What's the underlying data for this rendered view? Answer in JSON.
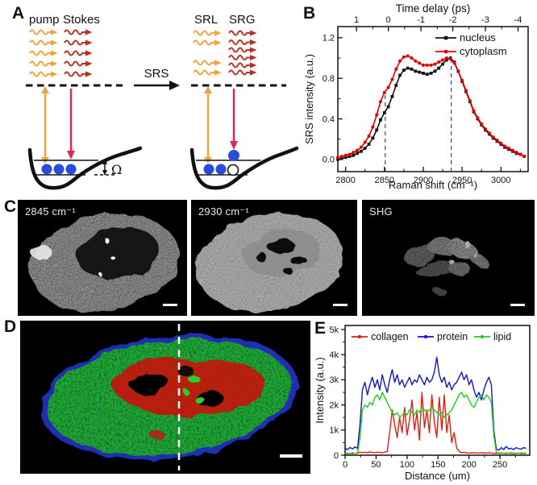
{
  "panel_labels": {
    "a": "A",
    "b": "B",
    "c": "C",
    "d": "D",
    "e": "E"
  },
  "panel_a": {
    "pump_label": "pump",
    "stokes_label": "Stokes",
    "srl_label": "SRL",
    "srg_label": "SRG",
    "srs_label": "SRS",
    "omega_label": "Ω",
    "colors": {
      "pump": "#EDA33E",
      "stokes": "#B7312C",
      "stokes_arrow": "#E5274E",
      "electron_blue": "#2B4BDB"
    }
  },
  "panel_c": {
    "image_labels": [
      "2845 cm⁻¹",
      "2930 cm⁻¹",
      "SHG"
    ]
  },
  "panel_d": {
    "colors": {
      "lipid_green": "#15AE1E",
      "protein_blue": "#2334C4",
      "collagen_red": "#C2170A"
    }
  },
  "chart_data": [
    {
      "id": "srs-spectrum",
      "type": "line",
      "top_axis_label": "Time delay (ps)",
      "xlabel": "Raman shift (cm⁻¹)",
      "ylabel": "SRS intensity (a.u.)",
      "xlim": [
        2790,
        3035
      ],
      "ylim": [
        -0.12,
        1.31
      ],
      "x_start": 2790,
      "x_step": 5,
      "x_ticks": [
        {
          "v": 2800,
          "label": "2800"
        },
        {
          "v": 2850,
          "label": "2850"
        },
        {
          "v": 2900,
          "label": "2900"
        },
        {
          "v": 2950,
          "label": "2950"
        },
        {
          "v": 3000,
          "label": "3000"
        }
      ],
      "x_minor": [
        2825,
        2875,
        2925,
        2975,
        3025
      ],
      "y_ticks": [
        {
          "v": 0.0,
          "label": "0.0"
        },
        {
          "v": 0.4,
          "label": "0.4"
        },
        {
          "v": 0.8,
          "label": "0.8"
        },
        {
          "v": 1.2,
          "label": "1.2"
        }
      ],
      "y_minor": [
        0.2,
        0.6,
        1.0
      ],
      "top_ticks": [
        {
          "v": 2814,
          "label": "1"
        },
        {
          "v": 2855,
          "label": "0"
        },
        {
          "v": 2897,
          "label": "-1"
        },
        {
          "v": 2938,
          "label": "-2"
        },
        {
          "v": 2980,
          "label": "-3"
        },
        {
          "v": 3022,
          "label": "-4"
        }
      ],
      "top_minor": [
        2835,
        2876,
        2918,
        2959,
        3001
      ],
      "dashed_vlines": [
        {
          "x": 2851,
          "y_top": 0.67
        },
        {
          "x": 2936,
          "y_top": 1.0
        }
      ],
      "series": [
        {
          "name": "nucleus",
          "color": "#141414",
          "marker": "square",
          "values": [
            0.0,
            0.01,
            0.02,
            0.03,
            0.04,
            0.06,
            0.08,
            0.11,
            0.15,
            0.21,
            0.29,
            0.39,
            0.46,
            0.52,
            0.62,
            0.73,
            0.83,
            0.88,
            0.9,
            0.89,
            0.87,
            0.86,
            0.85,
            0.84,
            0.85,
            0.87,
            0.9,
            0.94,
            0.98,
            1.0,
            0.96,
            0.87,
            0.77,
            0.67,
            0.57,
            0.47,
            0.4,
            0.34,
            0.29,
            0.25,
            0.21,
            0.18,
            0.15,
            0.12,
            0.1,
            0.08,
            0.06,
            0.05,
            0.03
          ]
        },
        {
          "name": "cytoplasm",
          "color": "#E00000",
          "marker": "circle",
          "values": [
            0.02,
            0.03,
            0.04,
            0.05,
            0.07,
            0.09,
            0.12,
            0.17,
            0.23,
            0.32,
            0.44,
            0.57,
            0.66,
            0.71,
            0.79,
            0.89,
            0.97,
            1.01,
            1.02,
            1.0,
            0.97,
            0.95,
            0.93,
            0.93,
            0.93,
            0.94,
            0.96,
            0.98,
            1.0,
            0.99,
            0.95,
            0.87,
            0.78,
            0.68,
            0.58,
            0.48,
            0.41,
            0.35,
            0.3,
            0.26,
            0.22,
            0.19,
            0.16,
            0.13,
            0.11,
            0.09,
            0.07,
            0.05,
            0.03
          ]
        }
      ],
      "legend_position": "top-right"
    },
    {
      "id": "line-profile",
      "type": "line",
      "xlabel": "Distance (um)",
      "ylabel": "Intensity (a.u.)",
      "y_unit": "k",
      "xlim": [
        0,
        298
      ],
      "ylim": [
        0,
        5.16
      ],
      "x_start": 0,
      "x_step": 4,
      "x_ticks": [
        {
          "v": 0,
          "label": "0"
        },
        {
          "v": 50,
          "label": "50"
        },
        {
          "v": 100,
          "label": "100"
        },
        {
          "v": 150,
          "label": "150"
        },
        {
          "v": 200,
          "label": "200"
        },
        {
          "v": 250,
          "label": "250"
        }
      ],
      "x_minor": [
        25,
        75,
        125,
        175,
        225,
        275
      ],
      "y_ticks": [
        {
          "v": 0,
          "label": "0"
        },
        {
          "v": 1,
          "label": "1k"
        },
        {
          "v": 2,
          "label": "2k"
        },
        {
          "v": 3,
          "label": "3k"
        },
        {
          "v": 4,
          "label": "4k"
        },
        {
          "v": 5,
          "label": "5k"
        }
      ],
      "y_minor": [
        0.5,
        1.5,
        2.5,
        3.5,
        4.5
      ],
      "series": [
        {
          "name": "collagen",
          "color": "#DD2010",
          "marker": "dot",
          "values": [
            0.05,
            0.08,
            0.06,
            0.09,
            0.07,
            0.08,
            0.12,
            0.1,
            0.12,
            0.1,
            0.13,
            0.11,
            0.1,
            0.12,
            0.11,
            0.1,
            0.12,
            0.15,
            0.9,
            1.8,
            1.2,
            0.7,
            1.5,
            0.9,
            1.9,
            0.8,
            1.4,
            2.2,
            1.0,
            1.7,
            0.6,
            2.5,
            1.1,
            1.8,
            0.9,
            2.4,
            1.3,
            0.7,
            2.3,
            1.0,
            2.4,
            0.9,
            1.6,
            0.5,
            0.9,
            0.3,
            0.15,
            0.1,
            0.12,
            0.1,
            0.08,
            0.1,
            0.09,
            0.1,
            0.08,
            0.1,
            0.09,
            0.08,
            0.1,
            0.09,
            0.07,
            0.08,
            0.06,
            0.08,
            0.07,
            0.06,
            0.08,
            0.07,
            0.06,
            0.07,
            0.08,
            0.06,
            0.07,
            0.06
          ]
        },
        {
          "name": "protein",
          "color": "#1515CC",
          "marker": "dot",
          "values": [
            0.28,
            0.22,
            0.31,
            0.25,
            0.33,
            0.27,
            1.2,
            2.6,
            2.9,
            2.4,
            2.8,
            3.1,
            2.7,
            3.0,
            2.6,
            3.2,
            2.8,
            2.5,
            3.0,
            3.4,
            2.9,
            3.2,
            2.8,
            3.0,
            2.7,
            2.9,
            3.1,
            2.8,
            3.0,
            2.9,
            3.2,
            3.0,
            2.8,
            3.1,
            2.9,
            3.0,
            3.3,
            3.9,
            3.2,
            2.9,
            3.1,
            2.7,
            2.9,
            2.6,
            2.8,
            2.9,
            3.1,
            3.3,
            3.0,
            3.2,
            2.8,
            3.0,
            2.6,
            2.3,
            2.5,
            2.2,
            2.6,
            2.9,
            3.1,
            2.8,
            1.0,
            0.25,
            0.2,
            0.3,
            0.22,
            0.35,
            0.25,
            0.28,
            0.22,
            0.3,
            0.26,
            0.24,
            0.3,
            0.27
          ]
        },
        {
          "name": "lipid",
          "color": "#22CB22",
          "marker": "dot",
          "values": [
            0.06,
            0.05,
            0.07,
            0.05,
            0.08,
            0.06,
            0.7,
            1.8,
            2.0,
            1.9,
            2.1,
            2.0,
            2.3,
            2.4,
            2.2,
            2.5,
            2.3,
            2.1,
            1.9,
            1.7,
            1.6,
            1.7,
            1.5,
            1.6,
            1.7,
            1.6,
            1.8,
            1.7,
            1.6,
            1.8,
            1.7,
            1.9,
            1.8,
            1.7,
            1.8,
            1.9,
            1.8,
            1.7,
            1.6,
            1.7,
            1.5,
            1.6,
            1.7,
            1.8,
            2.0,
            2.2,
            2.4,
            2.5,
            2.3,
            2.4,
            2.2,
            2.0,
            1.9,
            2.1,
            2.3,
            2.4,
            2.2,
            2.4,
            2.3,
            2.1,
            0.8,
            0.12,
            0.08,
            0.1,
            0.07,
            0.09,
            0.08,
            0.1,
            0.08,
            0.09,
            0.07,
            0.1,
            0.08,
            0.09
          ]
        }
      ],
      "legend_position": "top-row"
    }
  ]
}
